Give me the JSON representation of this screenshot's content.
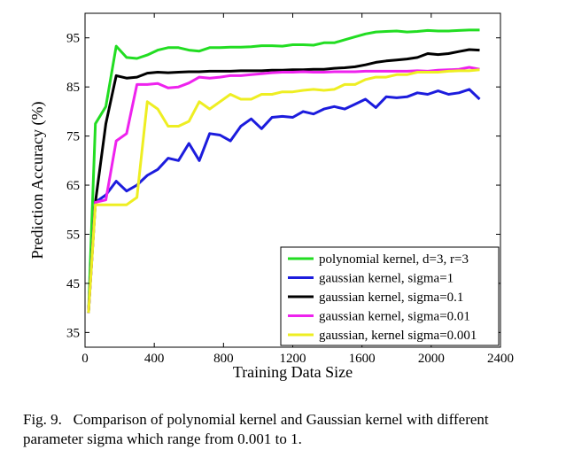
{
  "chart_data": {
    "type": "line",
    "xlabel": "Training Data Size",
    "ylabel": "Prediction Accuracy (%)",
    "xlim": [
      0,
      2400
    ],
    "ylim": [
      32,
      100
    ],
    "xticks": [
      0,
      400,
      800,
      1200,
      1600,
      2000,
      2400
    ],
    "yticks": [
      35,
      45,
      55,
      65,
      75,
      85,
      95
    ],
    "grid": false,
    "legend_position": "bottom-right",
    "x": [
      20,
      60,
      120,
      180,
      240,
      300,
      360,
      420,
      480,
      540,
      600,
      660,
      720,
      780,
      840,
      900,
      960,
      1020,
      1080,
      1140,
      1200,
      1260,
      1320,
      1380,
      1440,
      1500,
      1560,
      1620,
      1680,
      1740,
      1800,
      1860,
      1920,
      1980,
      2040,
      2100,
      2160,
      2220,
      2280
    ],
    "series": [
      {
        "name": "polynomial kernel, d=3, r=3",
        "color": "#22dd22",
        "values": [
          39,
          77.5,
          81,
          93.3,
          91,
          90.8,
          91.5,
          92.5,
          93,
          93,
          92.5,
          92.3,
          93,
          93,
          93.1,
          93.1,
          93.2,
          93.4,
          93.4,
          93.3,
          93.6,
          93.6,
          93.5,
          94,
          94,
          94.6,
          95.2,
          95.8,
          96.2,
          96.3,
          96.4,
          96.2,
          96.3,
          96.5,
          96.4,
          96.4,
          96.5,
          96.6,
          96.6
        ]
      },
      {
        "name": "gaussian kernel, sigma=1",
        "color": "#1c1cdd",
        "values": [
          39,
          61.5,
          63,
          65.8,
          63.8,
          65,
          67,
          68.2,
          70.5,
          70,
          73.5,
          70,
          75.5,
          75.2,
          74,
          77,
          78.5,
          76.5,
          78.8,
          79,
          78.8,
          80,
          79.5,
          80.5,
          81,
          80.5,
          81.5,
          82.5,
          80.8,
          83,
          82.8,
          83,
          83.8,
          83.5,
          84.2,
          83.5,
          83.8,
          84.5,
          82.5
        ]
      },
      {
        "name": "gaussian kernel, sigma=0.1",
        "color": "#000000",
        "values": [
          39,
          61.5,
          77.5,
          87.3,
          86.8,
          87,
          87.8,
          88,
          87.9,
          88,
          88.1,
          88.1,
          88.2,
          88.2,
          88.2,
          88.3,
          88.3,
          88.3,
          88.4,
          88.4,
          88.5,
          88.5,
          88.6,
          88.6,
          88.8,
          88.9,
          89.1,
          89.5,
          90,
          90.3,
          90.5,
          90.7,
          91,
          91.8,
          91.6,
          91.8,
          92.2,
          92.6,
          92.5
        ]
      },
      {
        "name": "gaussian kernel, sigma=0.01",
        "color": "#ee22ee",
        "values": [
          39,
          61.5,
          62,
          74,
          75.5,
          85.5,
          85.5,
          85.7,
          84.8,
          85,
          85.8,
          87,
          86.8,
          87,
          87.3,
          87.3,
          87.5,
          87.7,
          87.9,
          88,
          88,
          88.1,
          88,
          88,
          88.1,
          88.1,
          88.1,
          88.2,
          88.2,
          88.2,
          88.2,
          88.2,
          88.3,
          88.2,
          88.4,
          88.5,
          88.6,
          89,
          88.6
        ]
      },
      {
        "name": "gaussian, kernel sigma=0.001",
        "color": "#eeee22",
        "values": [
          39,
          61,
          61,
          61,
          61,
          62.5,
          82,
          80.5,
          77,
          77,
          78,
          82,
          80.5,
          82,
          83.5,
          82.5,
          82.5,
          83.5,
          83.5,
          84,
          84,
          84.3,
          84.5,
          84.3,
          84.5,
          85.5,
          85.5,
          86.5,
          87,
          87,
          87.5,
          87.5,
          88,
          88,
          88,
          88.2,
          88.3,
          88.3,
          88.5
        ]
      }
    ]
  },
  "caption": {
    "line1": "Fig. 9.   Comparison of polynomial kernel and Gaussian kernel with different",
    "line2": "parameter sigma which range from 0.001 to 1."
  }
}
